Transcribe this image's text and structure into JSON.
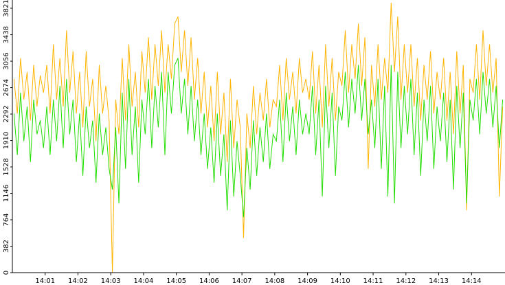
{
  "chart_data": {
    "type": "line",
    "x": [
      0.05,
      0.15,
      0.25,
      0.35,
      0.45,
      0.55,
      0.65,
      0.75,
      0.85,
      0.95,
      1.05,
      1.15,
      1.25,
      1.35,
      1.45,
      1.55,
      1.65,
      1.75,
      1.85,
      1.95,
      2.05,
      2.15,
      2.25,
      2.35,
      2.45,
      2.55,
      2.65,
      2.75,
      2.85,
      2.95,
      3.05,
      3.15,
      3.25,
      3.35,
      3.45,
      3.55,
      3.65,
      3.75,
      3.85,
      3.95,
      4.05,
      4.15,
      4.25,
      4.35,
      4.45,
      4.55,
      4.65,
      4.75,
      4.85,
      4.95,
      5.05,
      5.15,
      5.25,
      5.35,
      5.45,
      5.55,
      5.65,
      5.75,
      5.85,
      5.95,
      6.05,
      6.15,
      6.25,
      6.35,
      6.45,
      6.55,
      6.65,
      6.75,
      6.85,
      6.95,
      7.05,
      7.15,
      7.25,
      7.35,
      7.45,
      7.55,
      7.65,
      7.75,
      7.85,
      7.95,
      8.05,
      8.15,
      8.25,
      8.35,
      8.45,
      8.55,
      8.65,
      8.75,
      8.85,
      8.95,
      9.05,
      9.15,
      9.25,
      9.35,
      9.45,
      9.55,
      9.65,
      9.75,
      9.85,
      9.95,
      10.05,
      10.15,
      10.25,
      10.35,
      10.45,
      10.55,
      10.65,
      10.75,
      10.85,
      10.95,
      11.05,
      11.15,
      11.25,
      11.35,
      11.45,
      11.55,
      11.65,
      11.75,
      11.85,
      11.95,
      12.05,
      12.15,
      12.25,
      12.35,
      12.45,
      12.55,
      12.65,
      12.75,
      12.85,
      12.95,
      13.05,
      13.15,
      13.25,
      13.35,
      13.45,
      13.55,
      13.65,
      13.75,
      13.85,
      13.95,
      14.05,
      14.15,
      14.25,
      14.35,
      14.45,
      14.55,
      14.65,
      14.75,
      14.85,
      14.95
    ],
    "series": [
      {
        "color": "#ffb400",
        "values": [
          2800,
          2300,
          3100,
          2500,
          2900,
          2200,
          3000,
          2400,
          2850,
          2600,
          3000,
          2300,
          3300,
          2500,
          3100,
          2400,
          3500,
          2600,
          3200,
          2300,
          2900,
          2100,
          3200,
          2400,
          2800,
          1900,
          3000,
          2300,
          2700,
          2200,
          0,
          2500,
          2000,
          3100,
          2200,
          3300,
          2400,
          2900,
          2100,
          3200,
          2600,
          3400,
          2500,
          3300,
          2700,
          3500,
          2600,
          3300,
          2800,
          3600,
          3700,
          2900,
          3500,
          2700,
          3400,
          2500,
          3100,
          2300,
          2900,
          2100,
          2700,
          1900,
          2900,
          2000,
          2600,
          1600,
          2800,
          1800,
          2500,
          2100,
          500,
          2300,
          1800,
          2700,
          2000,
          2600,
          2200,
          2800,
          2100,
          2500,
          2400,
          3000,
          2200,
          3100,
          2500,
          2900,
          2300,
          3100,
          2600,
          2800,
          2500,
          3200,
          2300,
          3000,
          2100,
          3300,
          2400,
          3100,
          2200,
          2900,
          2700,
          3500,
          2600,
          3300,
          2800,
          3600,
          2700,
          3400,
          1500,
          3000,
          2400,
          3300,
          2500,
          3100,
          2600,
          3900,
          2900,
          3700,
          2500,
          3300,
          2600,
          3300,
          2400,
          3100,
          2200,
          3000,
          2500,
          3200,
          2300,
          2900,
          2500,
          3100,
          2200,
          2900,
          2000,
          3200,
          2300,
          3000,
          900,
          2800,
          2600,
          3300,
          2500,
          3500,
          2700,
          3300,
          2600,
          3100,
          1100,
          2400
        ]
      },
      {
        "color": "#22dd00",
        "values": [
          2300,
          1700,
          2600,
          1900,
          2400,
          1600,
          2500,
          2000,
          2200,
          1800,
          2400,
          1700,
          2500,
          1900,
          2700,
          1800,
          2800,
          2000,
          2500,
          1600,
          2300,
          1400,
          2400,
          1800,
          2200,
          1300,
          2300,
          1700,
          2100,
          1500,
          1200,
          2100,
          1000,
          2600,
          1500,
          2800,
          1700,
          2400,
          1300,
          2500,
          2000,
          2800,
          1800,
          2700,
          2100,
          2900,
          1700,
          2900,
          2300,
          3000,
          3100,
          2300,
          2800,
          2000,
          2700,
          1900,
          2500,
          1700,
          2300,
          1500,
          2100,
          1300,
          2300,
          1400,
          2000,
          900,
          2200,
          1100,
          1900,
          1400,
          800,
          1800,
          1200,
          2200,
          1400,
          2100,
          1600,
          2300,
          1500,
          2000,
          1900,
          2500,
          1600,
          2600,
          1900,
          2400,
          1700,
          2500,
          2000,
          2300,
          2000,
          2700,
          1700,
          2500,
          1100,
          2700,
          1800,
          2600,
          1400,
          2400,
          2200,
          2900,
          2100,
          2800,
          2300,
          3000,
          2200,
          2800,
          2000,
          2500,
          1800,
          2800,
          1500,
          2700,
          1100,
          3000,
          1000,
          2900,
          1800,
          2700,
          2000,
          2800,
          1700,
          2600,
          1400,
          2500,
          1900,
          2700,
          1500,
          2400,
          1900,
          2600,
          1600,
          2500,
          1200,
          2700,
          1800,
          2600,
          1000,
          2500,
          2200,
          2800,
          2000,
          2900,
          2300,
          2800,
          2100,
          2700,
          1800,
          2500
        ]
      }
    ],
    "xlim": [
      0,
      15
    ],
    "xticks": [
      {
        "value": 1,
        "label": "14:01"
      },
      {
        "value": 2,
        "label": "14:02"
      },
      {
        "value": 3,
        "label": "14:03"
      },
      {
        "value": 4,
        "label": "14:04"
      },
      {
        "value": 5,
        "label": "14:05"
      },
      {
        "value": 6,
        "label": "14:06"
      },
      {
        "value": 7,
        "label": "14:07"
      },
      {
        "value": 8,
        "label": "14:08"
      },
      {
        "value": 9,
        "label": "14:09"
      },
      {
        "value": 10,
        "label": "14:10"
      },
      {
        "value": 11,
        "label": "14:11"
      },
      {
        "value": 12,
        "label": "14:12"
      },
      {
        "value": 13,
        "label": "14:13"
      },
      {
        "value": 14,
        "label": "14:14"
      }
    ],
    "ylim": [
      0,
      3821
    ],
    "yticks": [
      0,
      382,
      764,
      1146,
      1528,
      1910,
      2292,
      2674,
      3056,
      3438,
      3821
    ]
  }
}
